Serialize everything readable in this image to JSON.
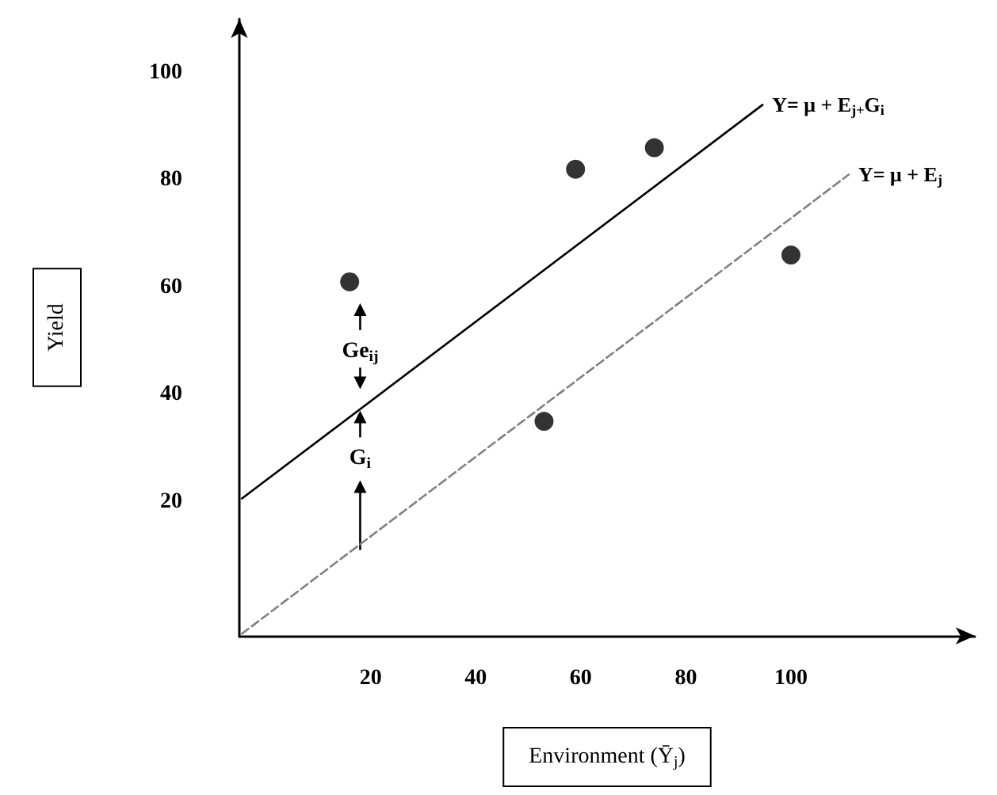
{
  "chart_data": {
    "type": "scatter",
    "xlabel": "Environment (Ȳ$_{j}$)",
    "ylabel": "Yield",
    "xlim": [
      -5,
      135
    ],
    "ylim": [
      -5,
      110
    ],
    "xticks": [
      20,
      40,
      60,
      80,
      100
    ],
    "yticks": [
      20,
      40,
      60,
      80,
      100
    ],
    "grid": false,
    "series": [
      {
        "color": "#000000",
        "marker": "circle",
        "x": [
          16,
          59,
          74,
          53,
          100
        ],
        "values": [
          61,
          82,
          86,
          35,
          66
        ]
      },
      {
        "type": "line",
        "name": "Y= μ + E$_{j}$$_{+}$G$_{i}$",
        "color": "#000000",
        "line_style": "solid",
        "marker": "none",
        "x": [
          -4.5,
          94.6
        ],
        "values": [
          20.6,
          94
        ]
      },
      {
        "type": "line",
        "name": "Y= μ + E$_{j}$",
        "color": "#808080",
        "line_style": "dashed",
        "marker": "none",
        "x": [
          -4.5,
          111
        ],
        "values": [
          -4.6,
          81
        ]
      }
    ],
    "annotations": [
      {
        "text": "Ge$_{ij}$",
        "x": 18,
        "y": 48
      },
      {
        "text": "G$_{i}$",
        "x": 18,
        "y": 28
      }
    ]
  }
}
